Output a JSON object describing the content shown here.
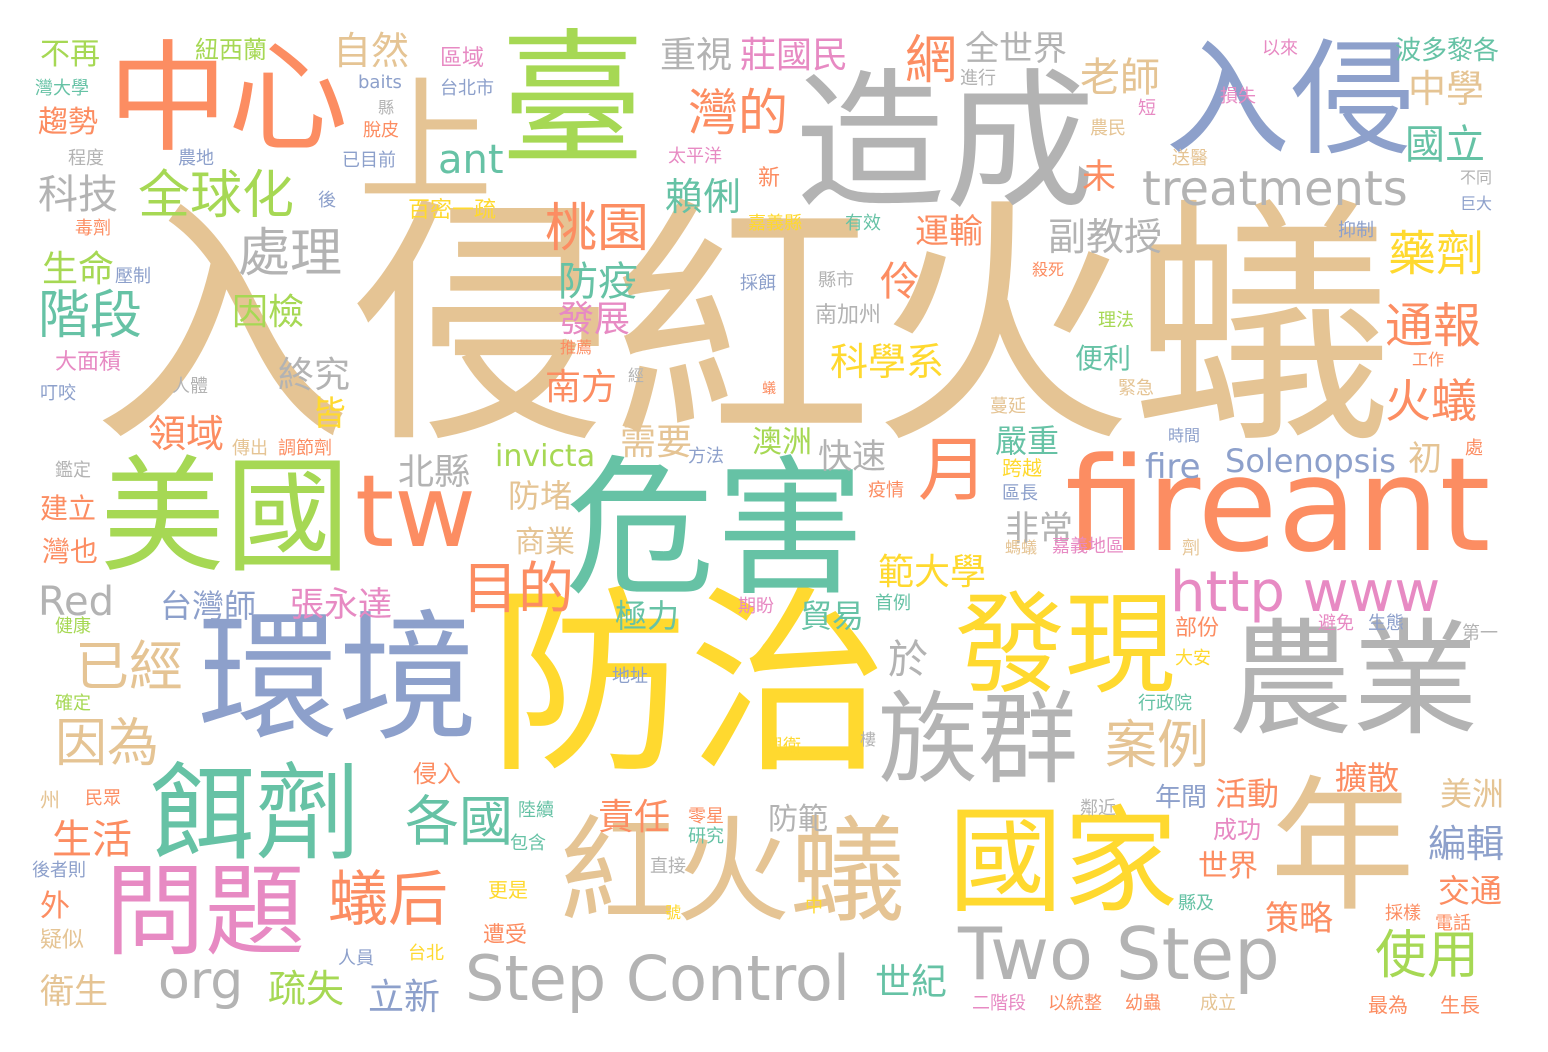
{
  "palette": {
    "tan": "#e5c494",
    "green": "#a6d854",
    "orange": "#fc8d62",
    "gray": "#b3b3b3",
    "blue": "#8da0cb",
    "yellow": "#ffd92f",
    "teal": "#66c2a5",
    "pink": "#e78ac3"
  },
  "words": {
    "w1": "入侵紅火蟻",
    "w2": "防治",
    "w3": "危害",
    "w4": "造成",
    "w5": "環境",
    "w6": "fireant",
    "w7": "紅火蟻",
    "w8": "美國",
    "w9": "農業",
    "w10": "年",
    "w11": "國家",
    "w12": "中心",
    "w13": "臺",
    "w14": "上",
    "w15": "入侵",
    "w16": "發現",
    "w17": "族群",
    "w18": "餌劑",
    "w19": "問題",
    "w20": "tw",
    "w21": "Two Step",
    "w22": "Step Control",
    "w23": "http www",
    "w24": "月",
    "w25": "treatments",
    "w26": "全球化",
    "w27": "ant",
    "w28": "蟻后",
    "w29": "目的",
    "w30": "org",
    "w31": "處理",
    "w32": "階段",
    "w33": "已經",
    "w34": "因為",
    "w35": "各國",
    "w36": "案例",
    "w37": "使用",
    "w38": "桃園",
    "w39": "灣的",
    "w40": "藥劑",
    "w41": "通報",
    "w42": "火蟻",
    "w43": "全世界",
    "w44": "莊國民",
    "w45": "網",
    "w46": "重視",
    "w47": "自然",
    "w48": "老師",
    "w49": "中學",
    "w50": "國立",
    "w51": "科技",
    "w52": "賴俐",
    "w53": "副教授",
    "w54": "防疫",
    "w55": "發展",
    "w56": "運輸",
    "w57": "伶",
    "w58": "科學系",
    "w59": "南方",
    "w60": "終究",
    "w61": "因檢",
    "w62": "生命",
    "w63": "領域",
    "w64": "皆",
    "w65": "北縣",
    "w66": "需要",
    "w67": "invicta",
    "w68": "快速",
    "w69": "澳洲",
    "w70": "嚴重",
    "w71": "fire",
    "w72": "Solenopsis",
    "w73": "初",
    "w74": "防堵",
    "w75": "商業",
    "w76": "範大學",
    "w77": "非常",
    "w78": "台灣師",
    "w79": "張永達",
    "w80": "Red",
    "w81": "於",
    "w82": "極力",
    "w83": "貿易",
    "w84": "責任",
    "w85": "活動",
    "w86": "擴散",
    "w87": "美洲",
    "w88": "編輯",
    "w89": "生活",
    "w90": "侵入",
    "w91": "防範",
    "w92": "年間",
    "w93": "成功",
    "w94": "世界",
    "w95": "交通",
    "w96": "策略",
    "w97": "世紀",
    "w98": "疏失",
    "w99": "立新",
    "w100": "衛生",
    "w101": "外",
    "w102": "不再",
    "w103": "紐西蘭",
    "w104": "區域",
    "w105": "baits",
    "w106": "台北市",
    "w107": "進行",
    "w108": "以來",
    "w109": "波多黎各",
    "w110": "趨勢",
    "w111": "程度",
    "w112": "農地",
    "w113": "已目前",
    "w114": "太平洋",
    "w115": "農民",
    "w116": "送醫",
    "w117": "未",
    "w118": "新",
    "w119": "不同",
    "w120": "巨大",
    "w121": "毒劑",
    "w122": "後",
    "w123": "百密一疏",
    "w124": "嘉義縣",
    "w125": "有效",
    "w126": "抑制",
    "w127": "壓制",
    "w128": "採餌",
    "w129": "縣市",
    "w130": "殺死",
    "w131": "理法",
    "w132": "南加州",
    "w133": "推薦",
    "w134": "工作",
    "w135": "大面積",
    "w136": "叮咬",
    "w137": "人體",
    "w138": "經",
    "w139": "緊急",
    "w140": "便利",
    "w141": "蔓延",
    "w142": "傳出",
    "w143": "調節劑",
    "w144": "時間",
    "w145": "鑑定",
    "w146": "方法",
    "w147": "疫情",
    "w148": "跨越",
    "w149": "區長",
    "w150": "建立",
    "w151": "處",
    "w152": "灣也",
    "w153": "嘉義地區",
    "w154": "螞蟻",
    "w155": "劑",
    "w156": "期盼",
    "w157": "首例",
    "w158": "健康",
    "w159": "部份",
    "w160": "避免",
    "w161": "生態",
    "w162": "第一",
    "w163": "大安",
    "w164": "地址",
    "w165": "確定",
    "w166": "行政院",
    "w167": "興衛",
    "w168": "樓",
    "w169": "州",
    "w170": "民眾",
    "w171": "陸續",
    "w172": "零星",
    "w173": "研究",
    "w174": "鄰近",
    "w175": "包含",
    "w176": "後者則",
    "w177": "直接",
    "w178": "更是",
    "w179": "中",
    "w180": "縣及",
    "w181": "採樣",
    "w182": "電話",
    "w183": "疑似",
    "w184": "遭受",
    "w185": "號",
    "w186": "人員",
    "w187": "台北",
    "w188": "二階段",
    "w189": "以統整",
    "w190": "幼蟲",
    "w191": "成立",
    "w192": "最為",
    "w193": "生長",
    "w194": "灣大學",
    "w195": "縣",
    "w196": "脫皮",
    "w197": "損失",
    "w198": "短",
    "w199": "蟻"
  }
}
